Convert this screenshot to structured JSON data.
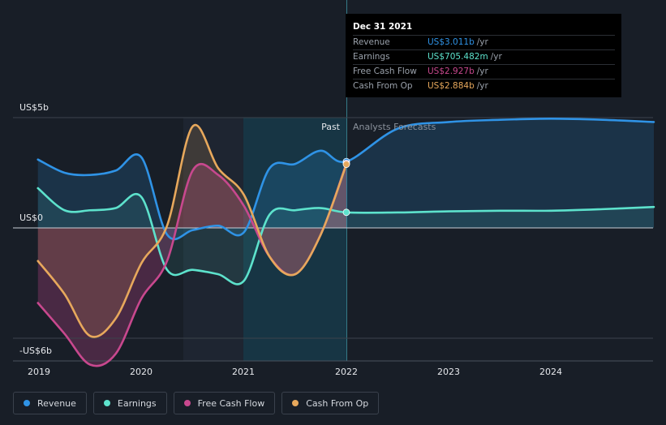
{
  "chart_data": {
    "type": "line",
    "ylabel_top": "US$5b",
    "ylabel_zero": "US$0",
    "ylabel_bottom": "-US$6b",
    "ylim": [
      -6,
      5
    ],
    "x_ticks": [
      "2019",
      "2020",
      "2021",
      "2022",
      "2023",
      "2024"
    ],
    "section_past": "Past",
    "section_forecast": "Analysts Forecasts",
    "series": [
      {
        "name": "Revenue",
        "color": "#2f93e6",
        "x": [
          2018.99,
          2019.25,
          2019.5,
          2019.75,
          2020.0,
          2020.25,
          2020.5,
          2020.75,
          2021.0,
          2021.25,
          2021.5,
          2021.75,
          2022.0,
          2022.5,
          2023.0,
          2023.5,
          2024.0,
          2024.5,
          2025.0
        ],
        "y": [
          3.1,
          2.5,
          2.4,
          2.6,
          3.2,
          -0.3,
          -0.1,
          0.1,
          -0.2,
          2.7,
          2.9,
          3.5,
          3.011,
          4.5,
          4.8,
          4.9,
          4.95,
          4.9,
          4.8
        ]
      },
      {
        "name": "Earnings",
        "color": "#5de2cc",
        "x": [
          2018.99,
          2019.25,
          2019.5,
          2019.75,
          2020.0,
          2020.25,
          2020.5,
          2020.75,
          2021.0,
          2021.25,
          2021.5,
          2021.75,
          2022.0,
          2022.5,
          2023.0,
          2023.5,
          2024.0,
          2024.5,
          2025.0
        ],
        "y": [
          1.8,
          0.8,
          0.8,
          0.9,
          1.4,
          -1.9,
          -1.9,
          -2.1,
          -2.4,
          0.6,
          0.8,
          0.9,
          0.705,
          0.7,
          0.75,
          0.78,
          0.78,
          0.85,
          0.95
        ]
      },
      {
        "name": "Free Cash Flow",
        "color": "#c8488e",
        "x": [
          2018.99,
          2019.25,
          2019.5,
          2019.75,
          2020.0,
          2020.25,
          2020.5,
          2020.75,
          2021.0,
          2021.25,
          2021.5,
          2021.75,
          2022.0
        ],
        "y": [
          -3.4,
          -4.8,
          -6.2,
          -5.7,
          -3.2,
          -1.5,
          2.6,
          2.4,
          1.0,
          -1.3,
          -2.1,
          -0.3,
          2.927
        ]
      },
      {
        "name": "Cash From Op",
        "color": "#e7a85c",
        "x": [
          2018.99,
          2019.25,
          2019.5,
          2019.75,
          2020.0,
          2020.25,
          2020.5,
          2020.75,
          2021.0,
          2021.25,
          2021.5,
          2021.75,
          2022.0
        ],
        "y": [
          -1.5,
          -3.0,
          -4.9,
          -4.1,
          -1.6,
          0.1,
          4.6,
          2.7,
          1.5,
          -1.3,
          -2.1,
          -0.3,
          2.884
        ]
      }
    ]
  },
  "tooltip": {
    "date": "Dec 31 2021",
    "rows": [
      {
        "label": "Revenue",
        "value": "US$3.011b",
        "unit": "/yr",
        "color": "#2f93e6"
      },
      {
        "label": "Earnings",
        "value": "US$705.482m",
        "unit": "/yr",
        "color": "#5de2cc"
      },
      {
        "label": "Free Cash Flow",
        "value": "US$2.927b",
        "unit": "/yr",
        "color": "#c8488e"
      },
      {
        "label": "Cash From Op",
        "value": "US$2.884b",
        "unit": "/yr",
        "color": "#e7a85c"
      }
    ]
  },
  "legend": [
    {
      "label": "Revenue",
      "color": "#2f93e6"
    },
    {
      "label": "Earnings",
      "color": "#5de2cc"
    },
    {
      "label": "Free Cash Flow",
      "color": "#c8488e"
    },
    {
      "label": "Cash From Op",
      "color": "#e7a85c"
    }
  ]
}
